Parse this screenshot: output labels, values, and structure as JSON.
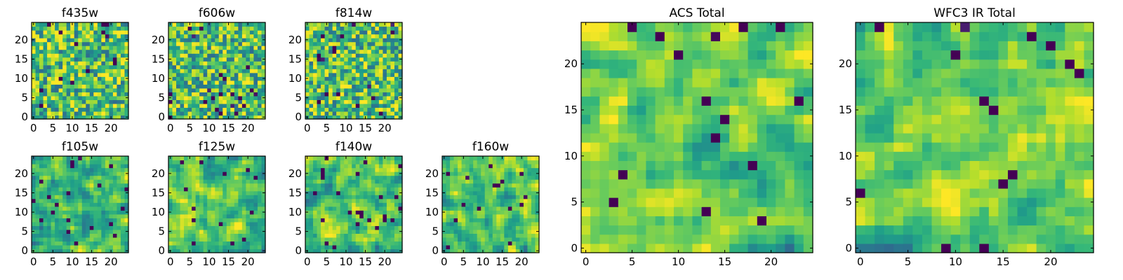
{
  "chart_data": [
    {
      "type": "heatmap",
      "title": "f435w",
      "colormap": "viridis",
      "grid_size": 25,
      "x_ticks": [
        0,
        5,
        10,
        15,
        20
      ],
      "y_ticks": [
        0,
        5,
        10,
        15,
        20
      ],
      "value_range": [
        0,
        1
      ],
      "seed": 11
    },
    {
      "type": "heatmap",
      "title": "f606w",
      "colormap": "viridis",
      "grid_size": 25,
      "x_ticks": [
        0,
        5,
        10,
        15,
        20
      ],
      "y_ticks": [
        0,
        5,
        10,
        15,
        20
      ],
      "value_range": [
        0,
        1
      ],
      "seed": 23
    },
    {
      "type": "heatmap",
      "title": "f814w",
      "colormap": "viridis",
      "grid_size": 25,
      "x_ticks": [
        0,
        5,
        10,
        15,
        20
      ],
      "y_ticks": [
        0,
        5,
        10,
        15,
        20
      ],
      "value_range": [
        0,
        1
      ],
      "seed": 37
    },
    {
      "type": "heatmap",
      "title": "f105w",
      "colormap": "viridis",
      "grid_size": 25,
      "x_ticks": [
        0,
        5,
        10,
        15,
        20
      ],
      "y_ticks": [
        0,
        5,
        10,
        15,
        20
      ],
      "value_range": [
        0,
        1
      ],
      "seed": 41
    },
    {
      "type": "heatmap",
      "title": "f125w",
      "colormap": "viridis",
      "grid_size": 25,
      "x_ticks": [
        0,
        5,
        10,
        15,
        20
      ],
      "y_ticks": [
        0,
        5,
        10,
        15,
        20
      ],
      "value_range": [
        0,
        1
      ],
      "seed": 53
    },
    {
      "type": "heatmap",
      "title": "f140w",
      "colormap": "viridis",
      "grid_size": 25,
      "x_ticks": [
        0,
        5,
        10,
        15,
        20
      ],
      "y_ticks": [
        0,
        5,
        10,
        15,
        20
      ],
      "value_range": [
        0,
        1
      ],
      "seed": 67
    },
    {
      "type": "heatmap",
      "title": "f160w",
      "colormap": "viridis",
      "grid_size": 25,
      "x_ticks": [
        0,
        5,
        10,
        15,
        20
      ],
      "y_ticks": [
        0,
        5,
        10,
        15,
        20
      ],
      "value_range": [
        0,
        1
      ],
      "seed": 79
    },
    {
      "type": "heatmap",
      "title": "ACS Total",
      "colormap": "viridis",
      "grid_size": 25,
      "x_ticks": [
        0,
        5,
        10,
        15,
        20
      ],
      "y_ticks": [
        0,
        5,
        10,
        15,
        20
      ],
      "value_range": [
        0,
        1
      ],
      "seed": 83
    },
    {
      "type": "heatmap",
      "title": "WFC3 IR Total",
      "colormap": "viridis",
      "grid_size": 25,
      "x_ticks": [
        0,
        5,
        10,
        15,
        20
      ],
      "y_ticks": [
        0,
        5,
        10,
        15,
        20
      ],
      "value_range": [
        0,
        1
      ],
      "seed": 97
    }
  ]
}
